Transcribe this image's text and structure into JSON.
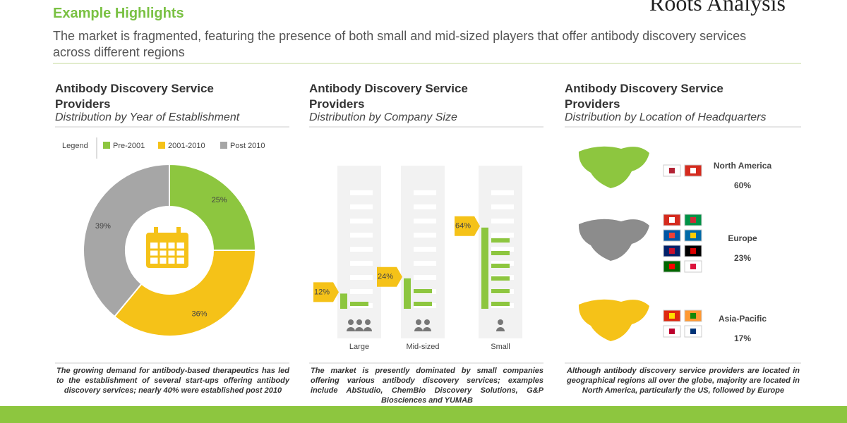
{
  "header": {
    "title": "Example Highlights",
    "subtitle": "The market is fragmented, featuring the presence of both small and mid-sized players that offer antibody discovery services across different regions",
    "logo": "Roots Analysis"
  },
  "chart_data": [
    {
      "type": "pie",
      "title": "Antibody Discovery Service Providers",
      "subtitle": "Distribution by Year of Establishment",
      "legend_title": "Legend",
      "categories": [
        "Pre-2001",
        "2001-2010",
        "Post 2010"
      ],
      "values": [
        25,
        36,
        39
      ],
      "value_labels": [
        "25%",
        "36%",
        "39%"
      ],
      "colors": [
        "#8dc63f",
        "#f5c218",
        "#a6a6a6"
      ],
      "footnote": "The growing demand for antibody-based therapeutics has led to the establishment of several start-ups offering antibody discovery services; nearly 40% were established post 2010"
    },
    {
      "type": "bar",
      "title": "Antibody Discovery Service Providers",
      "subtitle": "Distribution by Company Size",
      "categories": [
        "Large",
        "Mid-sized",
        "Small"
      ],
      "values": [
        12,
        24,
        64
      ],
      "value_labels": [
        "12%",
        "24%",
        "64%"
      ],
      "color": "#8dc63f",
      "footnote": "The market is presently dominated by small companies offering various antibody discovery services; examples include AbStudio, ChemBio Discovery Solutions, G&P Biosciences and YUMAB"
    },
    {
      "type": "region",
      "title": "Antibody Discovery Service Providers",
      "subtitle": "Distribution by Location of Headquarters",
      "categories": [
        "North America",
        "Europe",
        "Asia-Pacific"
      ],
      "values": [
        60,
        23,
        17
      ],
      "value_labels": [
        "60%",
        "23%",
        "17%"
      ],
      "colors": [
        "#8dc63f",
        "#8c8c8c",
        "#f5c218"
      ],
      "footnote": "Although antibody discovery service providers are located in geographical regions all over the globe, majority are located in North America, particularly the US, followed by Europe"
    }
  ]
}
